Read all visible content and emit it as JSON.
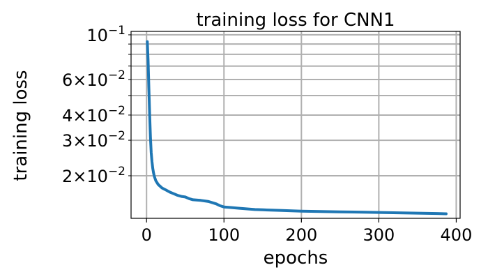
{
  "chart_data": {
    "type": "line",
    "title": "training loss for CNN1",
    "xlabel": "epochs",
    "ylabel": "training loss",
    "y_scale": "log",
    "grid": true,
    "legend": "none",
    "xlim": [
      -20,
      405
    ],
    "ylim": [
      0.0123,
      0.104
    ],
    "x_ticks": [
      0,
      100,
      200,
      300,
      400
    ],
    "x_tick_labels": [
      "0",
      "100",
      "200",
      "300",
      "400"
    ],
    "y_major_ticks": [
      0.1
    ],
    "y_minor_ticks": [
      0.02,
      0.03,
      0.04,
      0.05,
      0.06,
      0.07,
      0.08,
      0.09
    ],
    "y_tick_labels": [
      {
        "value": 0.1,
        "mantissa": "",
        "exp": "−1"
      },
      {
        "value": 0.06,
        "mantissa": "6",
        "exp": "−2"
      },
      {
        "value": 0.04,
        "mantissa": "4",
        "exp": "−2"
      },
      {
        "value": 0.03,
        "mantissa": "3",
        "exp": "−2"
      },
      {
        "value": 0.02,
        "mantissa": "2",
        "exp": "−2"
      }
    ],
    "series": [
      {
        "color": "#1f77b4",
        "points": [
          [
            1,
            0.0925
          ],
          [
            2,
            0.075
          ],
          [
            3,
            0.055
          ],
          [
            4,
            0.04
          ],
          [
            5,
            0.031
          ],
          [
            6,
            0.026
          ],
          [
            7,
            0.0235
          ],
          [
            8,
            0.0218
          ],
          [
            9,
            0.0207
          ],
          [
            10,
            0.0199
          ],
          [
            12,
            0.0189
          ],
          [
            15,
            0.0181
          ],
          [
            20,
            0.0174
          ],
          [
            25,
            0.017
          ],
          [
            30,
            0.0166
          ],
          [
            35,
            0.0163
          ],
          [
            40,
            0.016
          ],
          [
            45,
            0.0158
          ],
          [
            50,
            0.0157
          ],
          [
            55,
            0.0154
          ],
          [
            60,
            0.0152
          ],
          [
            70,
            0.0151
          ],
          [
            80,
            0.0149
          ],
          [
            90,
            0.0145
          ],
          [
            95,
            0.0142
          ],
          [
            100,
            0.014
          ],
          [
            110,
            0.0139
          ],
          [
            120,
            0.0138
          ],
          [
            130,
            0.0137
          ],
          [
            140,
            0.0136
          ],
          [
            150,
            0.01355
          ],
          [
            175,
            0.01345
          ],
          [
            200,
            0.01335
          ],
          [
            225,
            0.0133
          ],
          [
            250,
            0.01325
          ],
          [
            275,
            0.0132
          ],
          [
            300,
            0.01315
          ],
          [
            325,
            0.0131
          ],
          [
            350,
            0.01305
          ],
          [
            375,
            0.013
          ],
          [
            387,
            0.01295
          ]
        ]
      }
    ]
  }
}
